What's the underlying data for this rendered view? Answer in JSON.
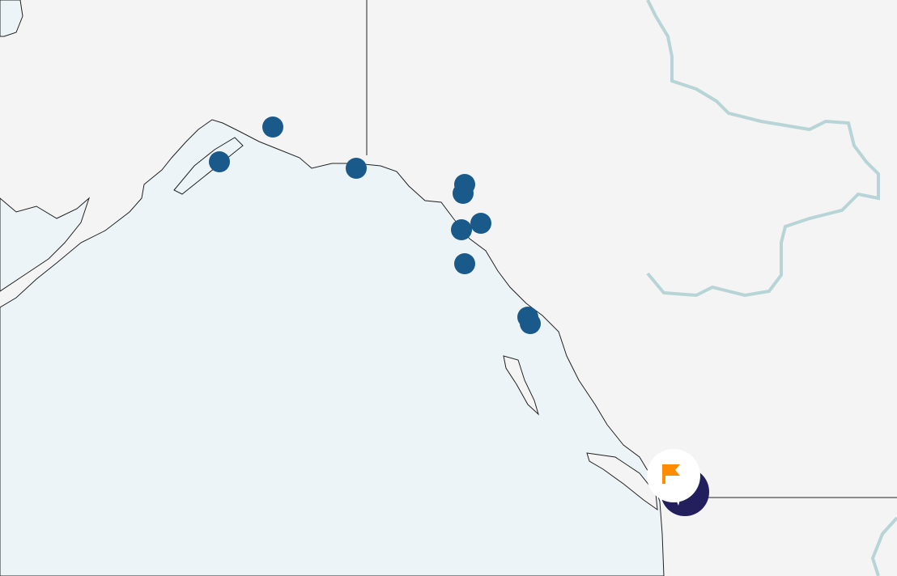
{
  "map": {
    "colors": {
      "land": "#f4f4f4",
      "water": "#edf4f7",
      "coastline": "#222222",
      "river": "#b7d5d6",
      "marker": "#1a5a8a",
      "selected_marker": "#221f5c",
      "flag": "#ff8c00"
    },
    "markers": [
      {
        "name": "location-marker"
      },
      {
        "name": "location-marker"
      },
      {
        "name": "location-marker"
      },
      {
        "name": "location-marker"
      },
      {
        "name": "location-marker"
      },
      {
        "name": "location-marker"
      },
      {
        "name": "location-marker"
      },
      {
        "name": "location-marker"
      },
      {
        "name": "location-marker"
      },
      {
        "name": "location-marker"
      }
    ],
    "selected_marker": {
      "icon": "maple-leaf-icon",
      "badge_icon": "flag-icon"
    }
  }
}
